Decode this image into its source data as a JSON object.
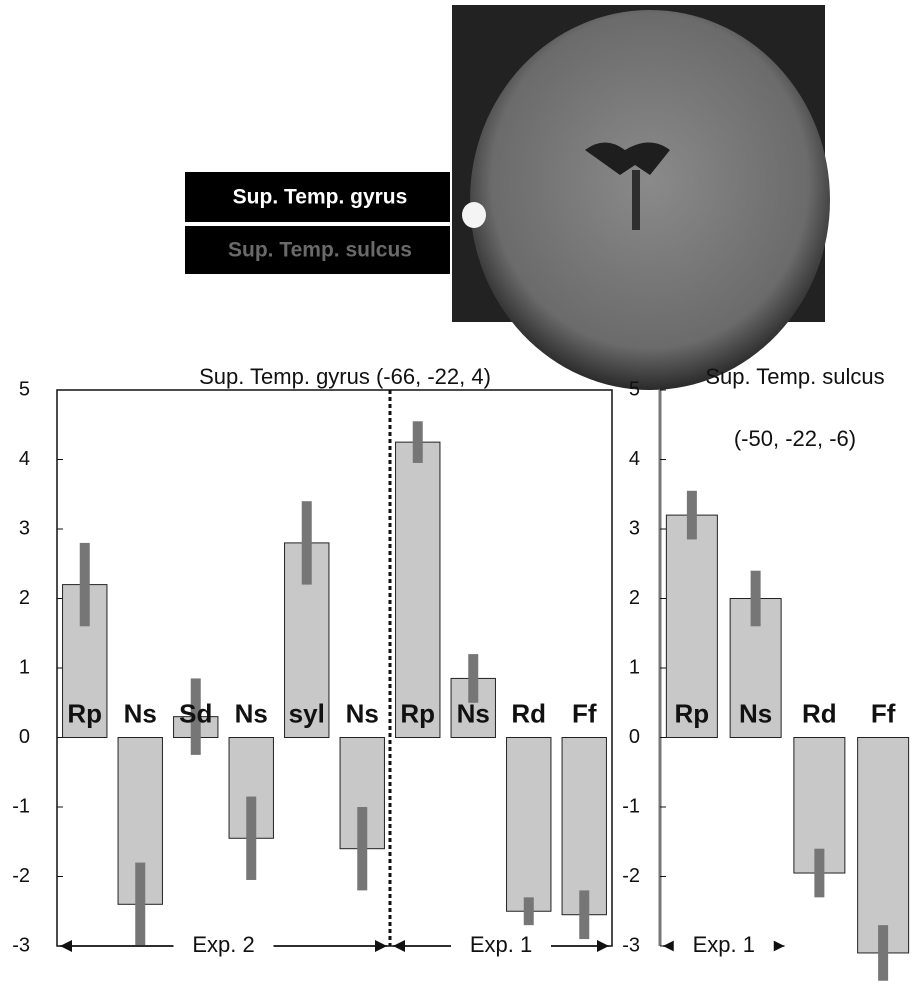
{
  "brain_image": {
    "labels": [
      "Sup. Temp. gyrus",
      "Sup. Temp. sulcus"
    ]
  },
  "chart_data": [
    {
      "type": "bar",
      "title": "Sup. Temp. gyrus (-66, -22, 4)",
      "categories": [
        "Rp",
        "Ns",
        "Sd",
        "Ns",
        "syl",
        "Ns",
        "Rp",
        "Ns",
        "Rd",
        "Ff"
      ],
      "values": [
        2.2,
        -2.4,
        0.3,
        -1.45,
        2.8,
        -1.6,
        4.25,
        0.85,
        -2.5,
        -2.55
      ],
      "errors": [
        0.6,
        0.6,
        0.55,
        0.6,
        0.6,
        0.6,
        0.3,
        0.35,
        0.2,
        0.35
      ],
      "color": "#c8c8c8",
      "error_color": "#767676",
      "ylim": [
        -3,
        5
      ],
      "yticks": [
        -3,
        -2,
        -1,
        0,
        1,
        2,
        3,
        4,
        5
      ],
      "annotations": [
        "Exp. 2",
        "Exp. 1"
      ]
    },
    {
      "type": "bar",
      "title": "Sup. Temp. sulcus",
      "subtitle": "(-50, -22, -6)",
      "categories": [
        "Rp",
        "Ns",
        "Rd",
        "Ff"
      ],
      "values": [
        3.2,
        2.0,
        -1.95,
        -3.1
      ],
      "errors": [
        0.35,
        0.4,
        0.35,
        0.4
      ],
      "color": "#c8c8c8",
      "error_color": "#767676",
      "ylim": [
        -3,
        5
      ],
      "yticks": [
        -3,
        -2,
        -1,
        0,
        1,
        2,
        3,
        4,
        5
      ],
      "annotations": [
        "Exp. 1"
      ]
    }
  ]
}
